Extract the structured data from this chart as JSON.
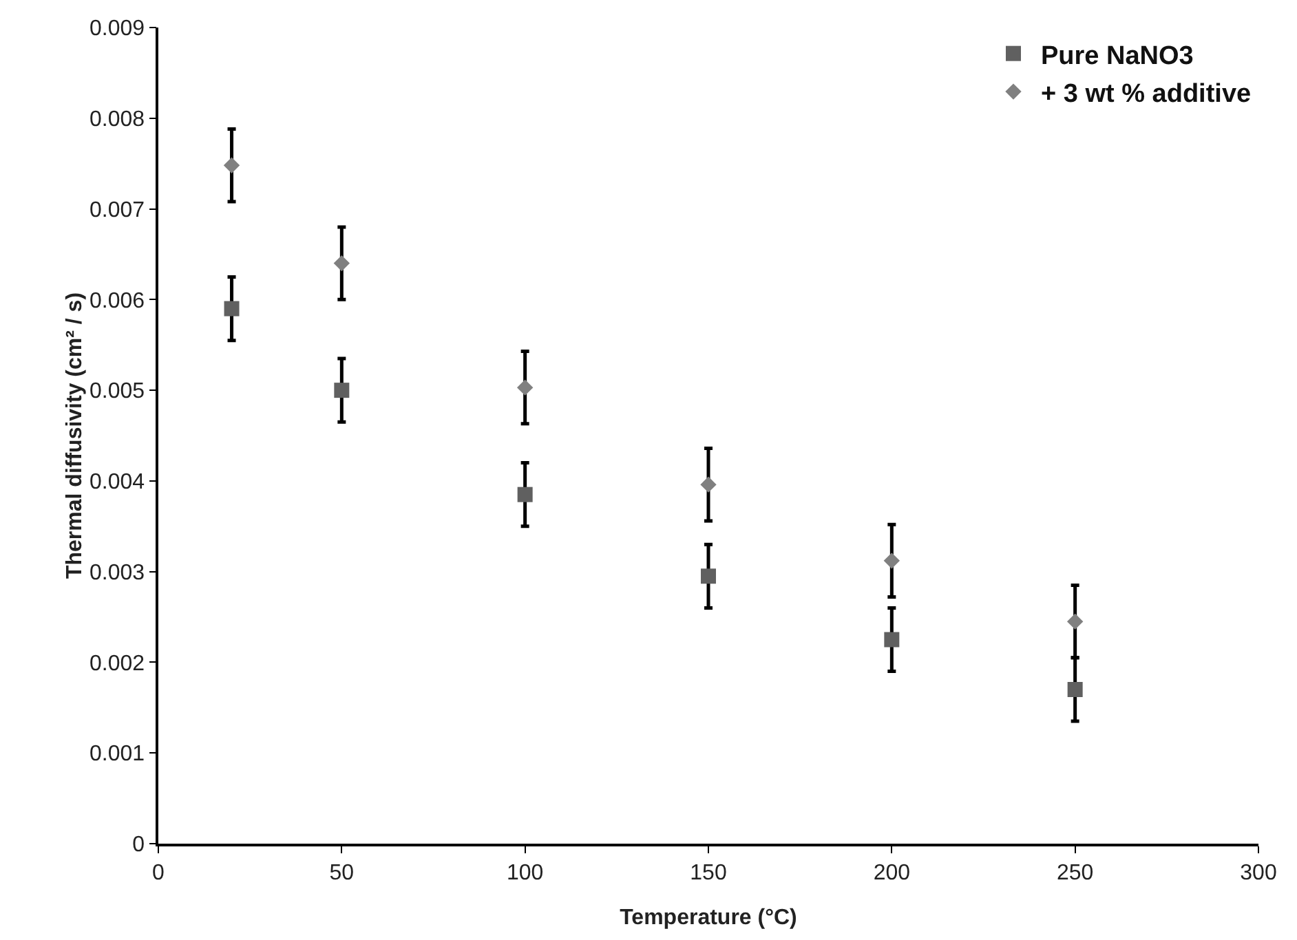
{
  "chart_data": {
    "type": "scatter",
    "xlabel": "Temperature (°C)",
    "ylabel": "Thermal diffusivity (cm² / s)",
    "x": [
      20,
      50,
      100,
      150,
      200,
      250
    ],
    "series": [
      {
        "name": "Pure NaNO3",
        "color": "#606060",
        "marker": "square",
        "values": [
          0.0059,
          0.005,
          0.00385,
          0.00295,
          0.00225,
          0.0017
        ],
        "errors": [
          0.00035,
          0.00035,
          0.00035,
          0.00035,
          0.00035,
          0.00035
        ]
      },
      {
        "name": "+ 3 wt % additive",
        "color": "#808080",
        "marker": "diamond",
        "values": [
          0.00748,
          0.0064,
          0.00503,
          0.00396,
          0.00312,
          0.00245
        ],
        "errors": [
          0.0004,
          0.0004,
          0.0004,
          0.0004,
          0.0004,
          0.0004
        ]
      }
    ],
    "xlim": [
      0,
      300
    ],
    "xticks": [
      0,
      50,
      100,
      150,
      200,
      250,
      300
    ],
    "ylim": [
      0,
      0.009
    ],
    "yticks": [
      0,
      0.001,
      0.002,
      0.003,
      0.004,
      0.005,
      0.006,
      0.007,
      0.008,
      0.009
    ],
    "grid": false,
    "legend": "top right"
  }
}
